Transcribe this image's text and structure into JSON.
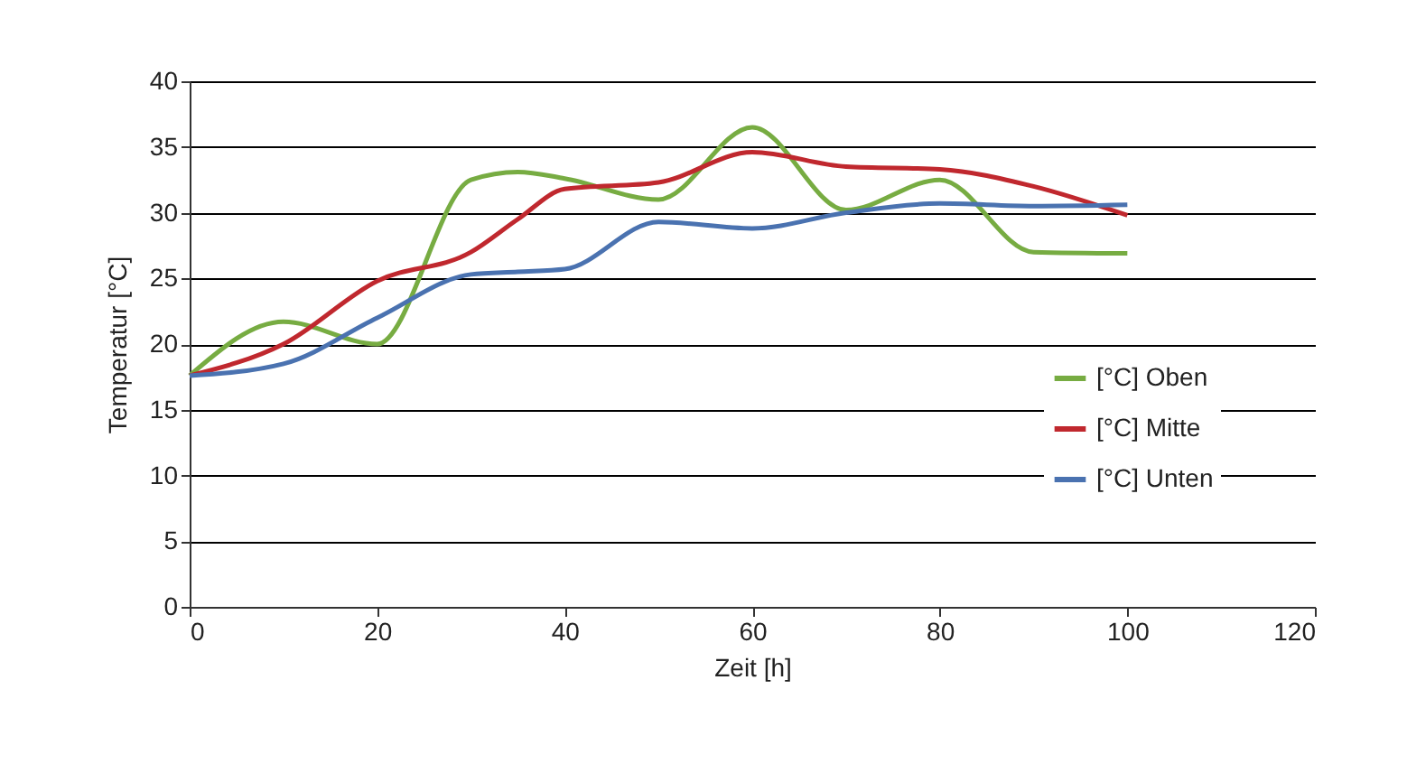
{
  "chart_data": {
    "type": "line",
    "xlabel": "Zeit [h]",
    "ylabel": "Temperatur [°C]",
    "x": [
      0,
      10,
      20,
      30,
      35,
      40,
      50,
      60,
      70,
      80,
      90,
      100
    ],
    "series": [
      {
        "name": "[°C] Oben",
        "color": "#77ac42",
        "values": [
          17.6,
          21.7,
          20.0,
          32.5,
          33.1,
          32.6,
          31.0,
          36.5,
          30.2,
          32.5,
          27.0,
          26.9
        ]
      },
      {
        "name": "[°C] Mitte",
        "color": "#c0282e",
        "values": [
          17.6,
          20.0,
          24.8,
          27.0,
          29.5,
          31.8,
          32.3,
          34.6,
          33.5,
          33.3,
          32.0,
          29.8
        ]
      },
      {
        "name": "[°C] Unten",
        "color": "#4a72b0",
        "values": [
          17.6,
          18.5,
          22.0,
          25.3,
          25.5,
          25.7,
          29.3,
          28.8,
          30.0,
          30.7,
          30.5,
          30.6
        ]
      }
    ],
    "xlim": [
      0,
      120
    ],
    "xticks": [
      0,
      20,
      40,
      60,
      80,
      100,
      120
    ],
    "ylim": [
      0,
      40
    ],
    "yticks": [
      0,
      5,
      10,
      15,
      20,
      25,
      30,
      35,
      40
    ],
    "grid": "y",
    "legend": "right",
    "marker": "none",
    "line_style": "solid"
  }
}
